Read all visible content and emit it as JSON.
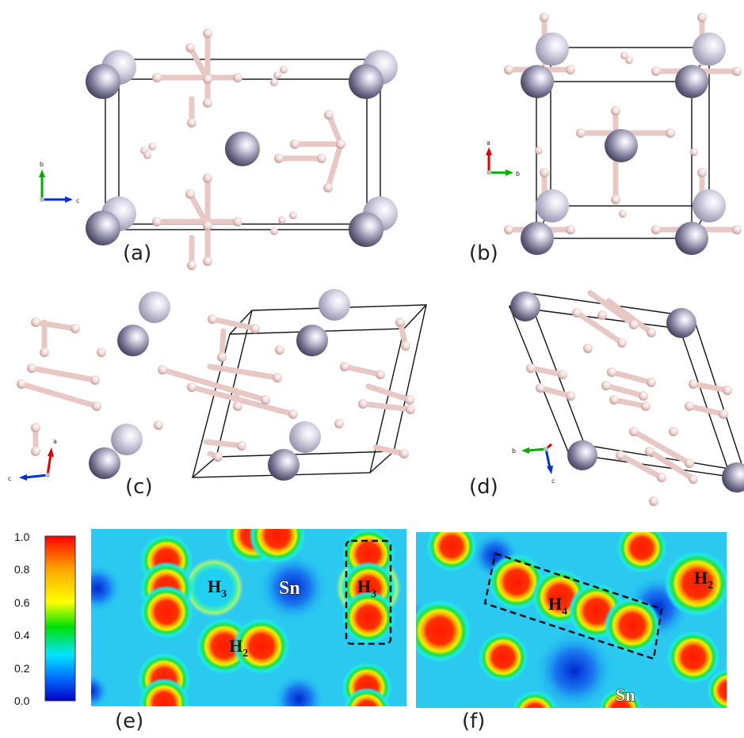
{
  "panels": {
    "a": {
      "label": "(a)",
      "axes": {
        "vertical": "b",
        "horizontal": "c"
      }
    },
    "b": {
      "label": "(b)",
      "axes": {
        "vertical": "a",
        "horizontal": "b"
      }
    },
    "c": {
      "label": "(c)",
      "axes": {
        "vertical": "a",
        "horizontal": "c"
      }
    },
    "d": {
      "label": "(d)",
      "axes": {
        "vertical": "c",
        "horizontal": "b"
      }
    },
    "e": {
      "label": "(e)",
      "species": [
        "H3",
        "Sn",
        "H3",
        "H2"
      ]
    },
    "f": {
      "label": "(f)",
      "species": [
        "H4",
        "H2",
        "Sn"
      ]
    }
  },
  "colorbar": {
    "ticks": [
      "1.0",
      "0.8",
      "0.6",
      "0.4",
      "0.2",
      "0.0"
    ],
    "stops": [
      "#ff0000",
      "#ffa500",
      "#ffff00",
      "#00e000",
      "#00e5ff",
      "#0078ff",
      "#0000c8"
    ]
  },
  "map_labels": {
    "e_h3_left": {
      "base": "H",
      "sub": "3"
    },
    "e_sn": {
      "base": "Sn"
    },
    "e_h3_right": {
      "base": "H",
      "sub": "3"
    },
    "e_h2": {
      "base": "H",
      "sub": "2"
    },
    "f_h4": {
      "base": "H",
      "sub": "4"
    },
    "f_h2": {
      "base": "H",
      "sub": "2"
    },
    "f_sn": {
      "base": "Sn"
    }
  },
  "colors": {
    "sn_atom": "#6f6b8a",
    "h_atom": "#f2d6d3",
    "cell_edge": "#111111",
    "axis_a": "#e00000",
    "axis_b": "#00b000",
    "axis_c": "#0030d0"
  }
}
